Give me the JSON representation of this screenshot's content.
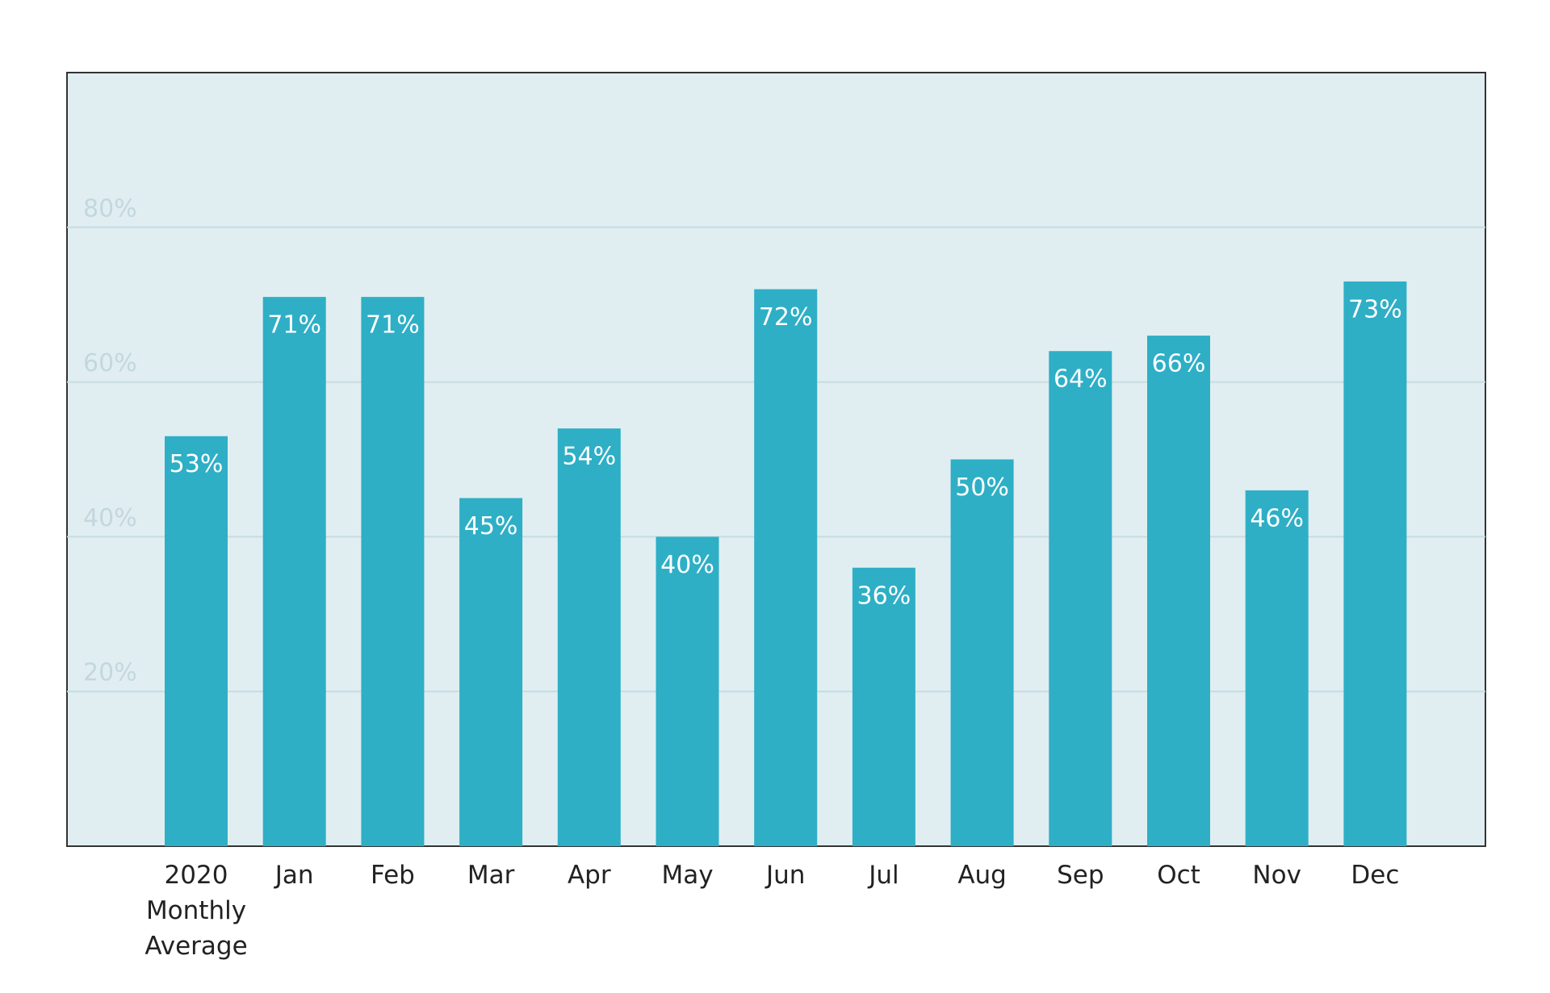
{
  "chart_data": {
    "type": "bar",
    "categories": [
      "2020 Monthly Average",
      "Jan",
      "Feb",
      "Mar",
      "Apr",
      "May",
      "Jun",
      "Jul",
      "Aug",
      "Sep",
      "Oct",
      "Nov",
      "Dec"
    ],
    "values": [
      53,
      71,
      71,
      45,
      54,
      40,
      72,
      36,
      50,
      64,
      66,
      46,
      73
    ],
    "value_labels": [
      "53%",
      "71%",
      "71%",
      "45%",
      "54%",
      "40%",
      "72%",
      "36%",
      "50%",
      "64%",
      "66%",
      "46%",
      "73%"
    ],
    "color": "#2eafc6",
    "ylim": [
      0,
      100
    ],
    "yticks": [
      {
        "value": 20,
        "label": "20%"
      },
      {
        "value": 40,
        "label": "40%"
      },
      {
        "value": 60,
        "label": "60%"
      },
      {
        "value": 80,
        "label": "80%"
      }
    ],
    "grid": true
  }
}
